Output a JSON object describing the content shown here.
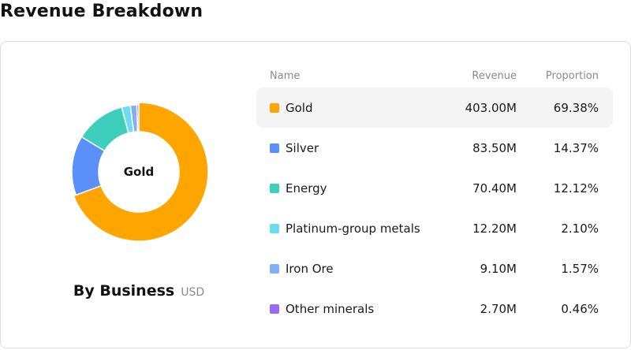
{
  "title": "Revenue Breakdown",
  "subtitle": "By Business",
  "unit": "USD",
  "center_label": "Gold",
  "table": {
    "headers": {
      "name": "Name",
      "revenue": "Revenue",
      "proportion": "Proportion"
    },
    "selected_index": 0
  },
  "chart_data": {
    "type": "pie",
    "title": "By Business",
    "unit": "USD",
    "donut": true,
    "categories": [
      "Gold",
      "Silver",
      "Energy",
      "Platinum-group metals",
      "Iron Ore",
      "Other minerals"
    ],
    "values": [
      403.0,
      83.5,
      70.4,
      12.2,
      9.1,
      2.7
    ],
    "revenue_labels": [
      "403.00M",
      "83.50M",
      "70.40M",
      "12.20M",
      "9.10M",
      "2.70M"
    ],
    "proportions": [
      "69.38%",
      "14.37%",
      "12.12%",
      "2.10%",
      "1.57%",
      "0.46%"
    ],
    "colors": [
      "#FFA500",
      "#5B8FF9",
      "#3DCFBC",
      "#6CDDF0",
      "#83AFF7",
      "#9A6BF0"
    ],
    "highlighted": "Gold"
  }
}
